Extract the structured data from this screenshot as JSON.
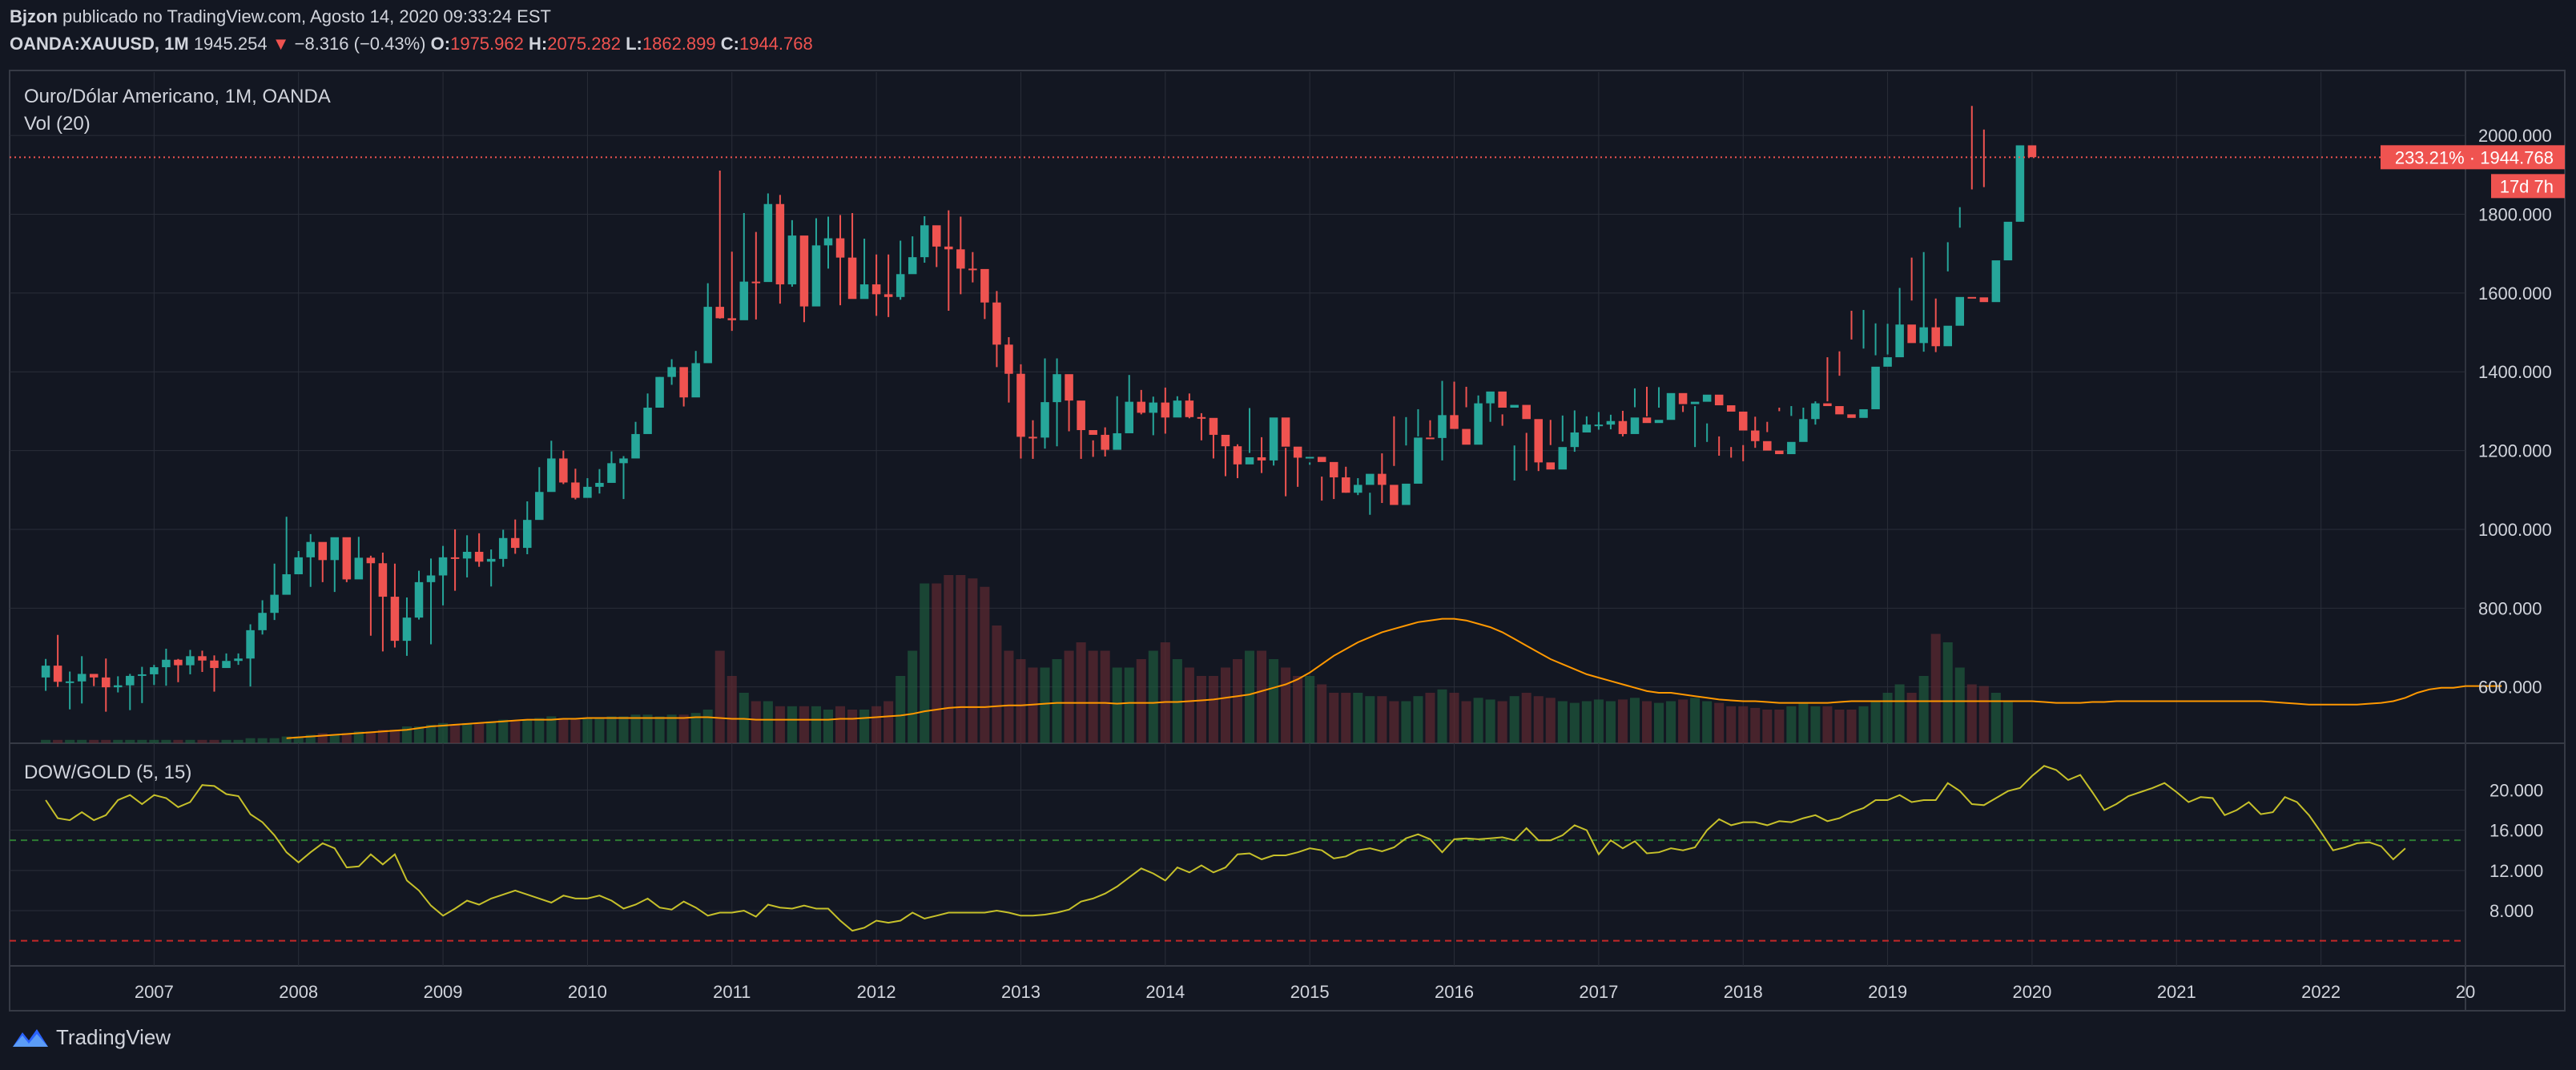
{
  "header": {
    "author": "Bjzon",
    "published_text": "publicado no TradingView.com, Agosto 14, 2020 09:33:24 EST",
    "symbol": "OANDA:XAUUSD, 1M",
    "last": "1945.254",
    "change_arrow": "▼",
    "change": "−8.316 (−0.43%)",
    "o_label": "O:",
    "o_value": "1975.962",
    "h_label": "H:",
    "h_value": "2075.282",
    "l_label": "L:",
    "l_value": "1862.899",
    "c_label": "C:",
    "c_value": "1944.768"
  },
  "pane1": {
    "title": "Ouro/Dólar Americano, 1M, OANDA",
    "vol_label": "Vol (20)",
    "price_label": "233.21% · 1944.768",
    "countdown": "17d 7h"
  },
  "pane2": {
    "title": "DOW/GOLD (5, 15)"
  },
  "footer": {
    "brand": "TradingView"
  },
  "colors": {
    "bg": "#131722",
    "up": "#26a69a",
    "down": "#ef5350",
    "grid": "#2a2e39",
    "vol_ma": "#ff9800",
    "ratio": "#c6c02a"
  },
  "chart_data": [
    {
      "type": "candlestick",
      "title": "Ouro/Dólar Americano, 1M, OANDA",
      "x_ticks": [
        "2007",
        "2008",
        "2009",
        "2010",
        "2011",
        "2012",
        "2013",
        "2014",
        "2015",
        "2016",
        "2017",
        "2018",
        "2019",
        "2020",
        "2021",
        "2022",
        "20"
      ],
      "y_ticks": [
        "2000.000",
        "1800.000",
        "1600.000",
        "1400.000",
        "1200.000",
        "1000.000",
        "800.000",
        "600.000"
      ],
      "y_tick_values": [
        2000,
        1800,
        1600,
        1400,
        1200,
        1000,
        800,
        600
      ],
      "start": "2006-04",
      "x_range": [
        "2006-01",
        "2023-01"
      ],
      "y_range": [
        457,
        2161
      ],
      "current_price": 1944.768,
      "closes": [
        654,
        613,
        614,
        633,
        624,
        599,
        604,
        628,
        632,
        650,
        669,
        655,
        678,
        667,
        648,
        666,
        672,
        744,
        788,
        834,
        886,
        929,
        968,
        922,
        980,
        873,
        928,
        914,
        829,
        717,
        776,
        866,
        883,
        929,
        926,
        943,
        918,
        925,
        978,
        953,
        1024,
        1095,
        1180,
        1119,
        1080,
        1108,
        1118,
        1168,
        1180,
        1242,
        1309,
        1387,
        1412,
        1335,
        1422,
        1565,
        1536,
        1531,
        1629,
        1628,
        1826,
        1622,
        1746,
        1566,
        1721,
        1739,
        1690,
        1585,
        1622,
        1597,
        1590,
        1648,
        1691,
        1772,
        1718,
        1711,
        1662,
        1661,
        1576,
        1469,
        1395,
        1235,
        1233,
        1323,
        1394,
        1327,
        1252,
        1240,
        1202,
        1244,
        1324,
        1296,
        1322,
        1284,
        1327,
        1285,
        1283,
        1240,
        1211,
        1165,
        1183,
        1175,
        1284,
        1210,
        1182,
        1184,
        1171,
        1132,
        1093,
        1113,
        1141,
        1113,
        1062,
        1116,
        1233,
        1232,
        1290,
        1255,
        1215,
        1320,
        1350,
        1309,
        1316,
        1280,
        1170,
        1152,
        1209,
        1246,
        1266,
        1266,
        1275,
        1242,
        1284,
        1270,
        1278,
        1346,
        1318,
        1324,
        1342,
        1315,
        1299,
        1251,
        1224,
        1200,
        1191,
        1222,
        1280,
        1320,
        1313,
        1292,
        1283,
        1305,
        1413,
        1437,
        1520,
        1473,
        1513,
        1465,
        1517,
        1590,
        1589,
        1577,
        1683,
        1781,
        1975,
        1945
      ],
      "highs": [
        671,
        732,
        639,
        678,
        626,
        672,
        627,
        633,
        651,
        656,
        697,
        671,
        694,
        692,
        680,
        685,
        685,
        759,
        820,
        913,
        1032,
        945,
        988,
        938,
        972,
        952,
        981,
        933,
        941,
        913,
        827,
        895,
        926,
        958,
        1000,
        985,
        990,
        949,
        999,
        1025,
        1071,
        1158,
        1225,
        1200,
        1154,
        1130,
        1153,
        1198,
        1186,
        1273,
        1345,
        1387,
        1432,
        1407,
        1453,
        1625,
        1911,
        1705,
        1803,
        1755,
        1853,
        1849,
        1785,
        1720,
        1790,
        1794,
        1798,
        1803,
        1738,
        1698,
        1698,
        1733,
        1744,
        1795,
        1725,
        1810,
        1794,
        1704,
        1640,
        1605,
        1488,
        1419,
        1277,
        1434,
        1434,
        1361,
        1298,
        1226,
        1259,
        1338,
        1392,
        1354,
        1337,
        1360,
        1338,
        1345,
        1295,
        1254,
        1236,
        1216,
        1308,
        1234,
        1225,
        1207,
        1191,
        1170,
        1134,
        1147,
        1159,
        1130,
        1093,
        1193,
        1287,
        1285,
        1305,
        1277,
        1377,
        1375,
        1362,
        1340,
        1337,
        1292,
        1213,
        1245,
        1261,
        1278,
        1289,
        1302,
        1287,
        1298,
        1291,
        1301,
        1358,
        1362,
        1361,
        1309,
        1314,
        1313,
        1269,
        1236,
        1209,
        1214,
        1286,
        1247,
        1300,
        1313,
        1309,
        1325,
        1437,
        1452,
        1555,
        1557,
        1523,
        1522,
        1613,
        1690,
        1704,
        1586,
        1729,
        1818,
        2075,
        2015
      ],
      "lows": [
        590,
        600,
        543,
        558,
        602,
        537,
        586,
        541,
        559,
        605,
        603,
        612,
        632,
        638,
        588,
        666,
        656,
        601,
        733,
        770,
        851,
        912,
        854,
        866,
        841,
        866,
        895,
        730,
        690,
        700,
        679,
        771,
        708,
        807,
        844,
        878,
        905,
        855,
        905,
        938,
        937,
        1073,
        1115,
        1115,
        1076,
        1094,
        1091,
        1152,
        1077,
        1199,
        1277,
        1326,
        1367,
        1312,
        1377,
        1478,
        1535,
        1504,
        1610,
        1533,
        1637,
        1573,
        1616,
        1526,
        1617,
        1662,
        1569,
        1688,
        1598,
        1542,
        1539,
        1583,
        1663,
        1677,
        1666,
        1555,
        1597,
        1627,
        1534,
        1412,
        1322,
        1180,
        1179,
        1205,
        1211,
        1249,
        1179,
        1184,
        1185,
        1207,
        1318,
        1292,
        1239,
        1243,
        1299,
        1282,
        1226,
        1180,
        1135,
        1130,
        1194,
        1143,
        1162,
        1084,
        1108,
        1164,
        1073,
        1077,
        1093,
        1087,
        1037,
        1067,
        1161,
        1213,
        1236,
        1236,
        1175,
        1270,
        1310,
        1306,
        1273,
        1263,
        1124,
        1149,
        1148,
        1214,
        1223,
        1197,
        1263,
        1253,
        1254,
        1236,
        1310,
        1287,
        1309,
        1299,
        1298,
        1209,
        1222,
        1187,
        1182,
        1173,
        1207,
        1273,
        1309,
        1288,
        1267,
        1266,
        1325,
        1390,
        1482,
        1459,
        1442,
        1444,
        1485,
        1581,
        1451,
        1450,
        1655,
        1766,
        1863,
        1869
      ],
      "volume_ma": [
        0,
        0,
        0,
        0,
        0,
        0,
        0,
        0,
        0,
        0,
        0,
        0,
        0,
        0,
        0,
        0,
        0,
        0,
        0,
        0,
        0.03,
        0.035,
        0.04,
        0.045,
        0.05,
        0.055,
        0.06,
        0.065,
        0.07,
        0.075,
        0.08,
        0.09,
        0.1,
        0.105,
        0.11,
        0.115,
        0.12,
        0.125,
        0.13,
        0.135,
        0.14,
        0.14,
        0.14,
        0.145,
        0.145,
        0.15,
        0.15,
        0.15,
        0.15,
        0.15,
        0.15,
        0.15,
        0.15,
        0.15,
        0.155,
        0.155,
        0.15,
        0.145,
        0.145,
        0.14,
        0.14,
        0.14,
        0.14,
        0.14,
        0.14,
        0.14,
        0.145,
        0.145,
        0.15,
        0.155,
        0.16,
        0.165,
        0.175,
        0.19,
        0.2,
        0.21,
        0.215,
        0.215,
        0.215,
        0.22,
        0.225,
        0.225,
        0.23,
        0.235,
        0.24,
        0.24,
        0.24,
        0.24,
        0.24,
        0.235,
        0.24,
        0.24,
        0.24,
        0.245,
        0.245,
        0.25,
        0.255,
        0.26,
        0.27,
        0.28,
        0.29,
        0.31,
        0.33,
        0.35,
        0.38,
        0.42,
        0.47,
        0.52,
        0.56,
        0.6,
        0.63,
        0.66,
        0.68,
        0.7,
        0.72,
        0.73,
        0.74,
        0.74,
        0.73,
        0.71,
        0.69,
        0.66,
        0.62,
        0.58,
        0.54,
        0.5,
        0.47,
        0.44,
        0.41,
        0.39,
        0.37,
        0.35,
        0.33,
        0.31,
        0.3,
        0.3,
        0.29,
        0.28,
        0.27,
        0.26,
        0.255,
        0.25,
        0.25,
        0.245,
        0.24,
        0.24,
        0.24,
        0.24,
        0.24,
        0.245,
        0.25,
        0.25,
        0.25,
        0.25,
        0.25,
        0.25,
        0.25,
        0.25,
        0.25,
        0.25,
        0.25,
        0.25,
        0.25,
        0.25,
        0.25,
        0.25,
        0.245,
        0.24,
        0.24,
        0.24,
        0.245,
        0.245,
        0.25,
        0.25,
        0.25,
        0.25,
        0.25,
        0.25,
        0.25,
        0.25,
        0.25,
        0.25,
        0.25,
        0.25,
        0.25,
        0.245,
        0.24,
        0.235,
        0.23,
        0.23,
        0.23,
        0.23,
        0.23,
        0.235,
        0.24,
        0.25,
        0.27,
        0.3,
        0.32,
        0.33,
        0.33,
        0.34,
        0.34,
        0.34,
        0.34
      ],
      "volumes": [
        0.02,
        0.02,
        0.02,
        0.02,
        0.02,
        0.02,
        0.02,
        0.02,
        0.02,
        0.02,
        0.02,
        0.02,
        0.02,
        0.02,
        0.02,
        0.02,
        0.02,
        0.03,
        0.03,
        0.03,
        0.04,
        0.04,
        0.05,
        0.06,
        0.05,
        0.06,
        0.07,
        0.07,
        0.08,
        0.08,
        0.1,
        0.1,
        0.11,
        0.12,
        0.11,
        0.12,
        0.12,
        0.13,
        0.14,
        0.13,
        0.14,
        0.15,
        0.16,
        0.15,
        0.14,
        0.15,
        0.15,
        0.16,
        0.16,
        0.17,
        0.17,
        0.16,
        0.17,
        0.17,
        0.18,
        0.2,
        0.55,
        0.4,
        0.3,
        0.25,
        0.25,
        0.22,
        0.22,
        0.22,
        0.22,
        0.2,
        0.22,
        0.2,
        0.2,
        0.22,
        0.25,
        0.4,
        0.55,
        0.95,
        0.95,
        1.0,
        1.0,
        0.98,
        0.93,
        0.7,
        0.55,
        0.5,
        0.45,
        0.45,
        0.5,
        0.55,
        0.6,
        0.55,
        0.55,
        0.45,
        0.45,
        0.5,
        0.55,
        0.6,
        0.5,
        0.45,
        0.4,
        0.4,
        0.45,
        0.5,
        0.55,
        0.55,
        0.5,
        0.45,
        0.4,
        0.4,
        0.35,
        0.3,
        0.3,
        0.3,
        0.28,
        0.28,
        0.25,
        0.25,
        0.28,
        0.3,
        0.32,
        0.3,
        0.25,
        0.27,
        0.26,
        0.25,
        0.28,
        0.3,
        0.28,
        0.27,
        0.25,
        0.24,
        0.25,
        0.26,
        0.25,
        0.26,
        0.27,
        0.25,
        0.24,
        0.25,
        0.26,
        0.27,
        0.25,
        0.24,
        0.22,
        0.22,
        0.21,
        0.2,
        0.2,
        0.22,
        0.24,
        0.22,
        0.22,
        0.2,
        0.2,
        0.22,
        0.25,
        0.3,
        0.35,
        0.3,
        0.4,
        0.65,
        0.6,
        0.45,
        0.35,
        0.34,
        0.3,
        0.25
      ]
    },
    {
      "type": "line",
      "title": "DOW/GOLD (5, 15)",
      "x_ticks": [
        "2007",
        "2008",
        "2009",
        "2010",
        "2011",
        "2012",
        "2013",
        "2014",
        "2015",
        "2016",
        "2017",
        "2018",
        "2019",
        "2020",
        "2021",
        "2022",
        "20"
      ],
      "y_ticks": [
        "20.000",
        "16.000",
        "12.000",
        "8.000"
      ],
      "y_tick_values": [
        20,
        16,
        12,
        8
      ],
      "y_range": [
        2.5,
        24.5
      ],
      "reference_levels": [
        15,
        5
      ],
      "start": "2006-04",
      "values": [
        19,
        17.2,
        17,
        17.8,
        17,
        17.5,
        19,
        19.5,
        18.6,
        19.5,
        19.2,
        18.3,
        18.8,
        20.5,
        20.4,
        19.6,
        19.4,
        17.6,
        16.8,
        15.5,
        13.8,
        12.8,
        13.8,
        14.7,
        14.2,
        12.3,
        12.4,
        13.6,
        12.6,
        13.6,
        11,
        10,
        8.5,
        7.5,
        8.2,
        9,
        8.6,
        9.2,
        9.6,
        10,
        9.6,
        9.2,
        8.8,
        9.5,
        9.2,
        9.2,
        9.5,
        9,
        8.2,
        8.6,
        9.2,
        8.3,
        8.1,
        8.9,
        8.3,
        7.5,
        7.8,
        7.8,
        8,
        7.4,
        8.6,
        8.3,
        8.2,
        8.5,
        8.2,
        8.2,
        7,
        6,
        6.3,
        7,
        6.8,
        7,
        7.8,
        7.2,
        7.5,
        7.8,
        7.8,
        7.8,
        7.8,
        8,
        7.8,
        7.5,
        7.5,
        7.6,
        7.8,
        8.1,
        8.9,
        9.2,
        9.7,
        10.4,
        11.3,
        12.2,
        11.7,
        11,
        12.3,
        11.8,
        12.5,
        11.8,
        12.3,
        13.6,
        13.7,
        13.1,
        13.5,
        13.5,
        13.8,
        14.2,
        14,
        13.2,
        13.4,
        14,
        14.2,
        13.9,
        14.3,
        15.2,
        15.6,
        15.1,
        13.8,
        15.1,
        15.2,
        15.1,
        15.2,
        15.3,
        15,
        16.2,
        15,
        15,
        15.5,
        16.5,
        16,
        13.6,
        15,
        14.2,
        14.9,
        13.7,
        13.8,
        14.2,
        14,
        14.3,
        16,
        17.1,
        16.5,
        16.8,
        16.8,
        16.5,
        16.9,
        16.8,
        17.2,
        17.5,
        16.9,
        17.2,
        17.8,
        18.2,
        19,
        19,
        19.5,
        18.8,
        19,
        19,
        20.7,
        19.9,
        18.6,
        18.5,
        19.2,
        19.9,
        20.2,
        21.4,
        22.4,
        22,
        21,
        21.5,
        19.8,
        18,
        18.6,
        19.4,
        19.8,
        20.2,
        20.7,
        19.8,
        18.8,
        19.3,
        19.2,
        17.5,
        18,
        18.8,
        17.6,
        17.8,
        19.3,
        18.8,
        17.5,
        15.8,
        14,
        14.3,
        14.7,
        14.8,
        14.4,
        13.1,
        14.2
      ]
    }
  ]
}
